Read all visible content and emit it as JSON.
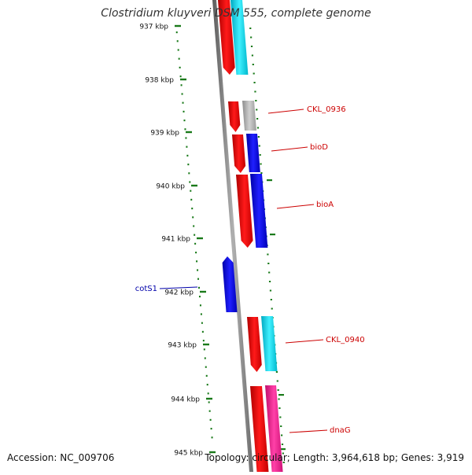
{
  "title": "Clostridium kluyveri DSM 555, complete genome",
  "accession": "Accession: NC_009706",
  "summary": "Topology: circular; Length: 3,964,618 bp; Genes: 3,919",
  "colors": {
    "ruler": "#1a7a1a",
    "backbone": "#7a7a7a",
    "forward_label": "#cc0000",
    "reverse_label": "#0000aa",
    "cds_red": "#ee0000",
    "cds_cyan": "#00d5e8",
    "cds_gray": "#b0b0b0",
    "cds_blue": "#0000ee",
    "cds_pink": "#ff1493"
  },
  "ruler": {
    "unit": "kbp",
    "ticks": [
      "937 kbp",
      "938 kbp",
      "939 kbp",
      "940 kbp",
      "941 kbp",
      "942 kbp",
      "943 kbp",
      "944 kbp",
      "945 kbp"
    ]
  },
  "genes": [
    {
      "strand": "+",
      "color": "cds_red"
    },
    {
      "strand": "+",
      "color": "cds_cyan"
    },
    {
      "strand": "+",
      "color": "cds_red"
    },
    {
      "strand": "+",
      "color": "cds_gray",
      "label": "CKL_0936"
    },
    {
      "strand": "+",
      "color": "cds_red"
    },
    {
      "strand": "+",
      "color": "cds_blue",
      "label": "bioD"
    },
    {
      "strand": "+",
      "color": "cds_red"
    },
    {
      "strand": "+",
      "color": "cds_blue",
      "label": "bioA"
    },
    {
      "strand": "-",
      "color": "cds_blue",
      "label": "cotS1"
    },
    {
      "strand": "+",
      "color": "cds_red"
    },
    {
      "strand": "+",
      "color": "cds_cyan",
      "label": "CKL_0940"
    },
    {
      "strand": "+",
      "color": "cds_red"
    },
    {
      "strand": "+",
      "color": "cds_pink",
      "label": "dnaG"
    }
  ]
}
